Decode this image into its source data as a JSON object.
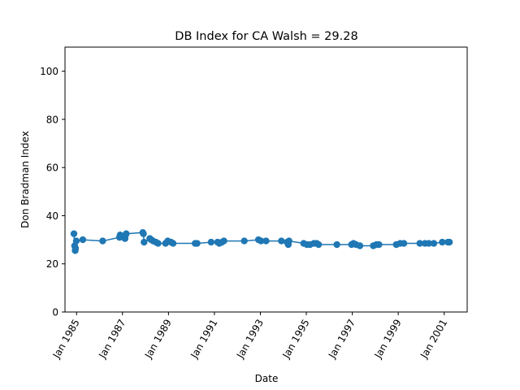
{
  "chart_data": {
    "type": "line",
    "title": "DB Index for CA Walsh = 29.28",
    "xlabel": "Date",
    "ylabel": "Don Bradman Index",
    "ylim": [
      0,
      110
    ],
    "xlim": [
      "1984-07-01",
      "2002-01-01"
    ],
    "yticks": [
      0,
      20,
      40,
      60,
      80,
      100
    ],
    "xticks": [
      {
        "date": "1985-01-01",
        "label": "Jan 1985"
      },
      {
        "date": "1987-01-01",
        "label": "Jan 1987"
      },
      {
        "date": "1989-01-01",
        "label": "Jan 1989"
      },
      {
        "date": "1991-01-01",
        "label": "Jan 1991"
      },
      {
        "date": "1993-01-01",
        "label": "Jan 1993"
      },
      {
        "date": "1995-01-01",
        "label": "Jan 1995"
      },
      {
        "date": "1997-01-01",
        "label": "Jan 1997"
      },
      {
        "date": "1999-01-01",
        "label": "Jan 1999"
      },
      {
        "date": "2001-01-01",
        "label": "Jan 2001"
      }
    ],
    "grid": false,
    "color": "#1f77b4",
    "series": [
      {
        "points": [
          [
            "1984-11-20",
            32.5
          ],
          [
            "1984-12-01",
            27.5
          ],
          [
            "1984-12-10",
            25.5
          ],
          [
            "1984-12-15",
            26.5
          ],
          [
            "1984-12-28",
            29.5
          ],
          [
            "1985-04-10",
            30.0
          ],
          [
            "1986-02-20",
            29.5
          ],
          [
            "1986-11-15",
            31.0
          ],
          [
            "1986-11-25",
            32.0
          ],
          [
            "1987-02-10",
            30.5
          ],
          [
            "1987-02-20",
            32.0
          ],
          [
            "1987-03-01",
            32.5
          ],
          [
            "1987-11-20",
            33.0
          ],
          [
            "1987-11-30",
            32.5
          ],
          [
            "1987-12-10",
            29.0
          ],
          [
            "1988-03-10",
            30.5
          ],
          [
            "1988-04-01",
            30.0
          ],
          [
            "1988-05-01",
            29.5
          ],
          [
            "1988-06-15",
            29.0
          ],
          [
            "1988-07-20",
            28.5
          ],
          [
            "1988-11-15",
            28.5
          ],
          [
            "1988-12-20",
            29.5
          ],
          [
            "1989-02-10",
            29.0
          ],
          [
            "1989-03-15",
            28.5
          ],
          [
            "1990-03-01",
            28.5
          ],
          [
            "1990-04-01",
            28.5
          ],
          [
            "1990-11-10",
            29.0
          ],
          [
            "1991-02-20",
            29.0
          ],
          [
            "1991-03-20",
            28.5
          ],
          [
            "1991-05-01",
            29.0
          ],
          [
            "1991-06-01",
            29.5
          ],
          [
            "1992-04-20",
            29.5
          ],
          [
            "1992-12-01",
            30.0
          ],
          [
            "1993-01-10",
            29.5
          ],
          [
            "1993-04-01",
            29.5
          ],
          [
            "1993-12-01",
            29.5
          ],
          [
            "1994-03-01",
            29.0
          ],
          [
            "1994-03-20",
            28.0
          ],
          [
            "1994-04-01",
            29.5
          ],
          [
            "1994-11-20",
            28.5
          ],
          [
            "1995-01-10",
            28.0
          ],
          [
            "1995-03-01",
            28.0
          ],
          [
            "1995-05-01",
            28.5
          ],
          [
            "1995-06-15",
            28.5
          ],
          [
            "1995-07-15",
            28.0
          ],
          [
            "1996-05-01",
            28.0
          ],
          [
            "1996-12-20",
            28.0
          ],
          [
            "1997-01-20",
            28.5
          ],
          [
            "1997-03-01",
            28.0
          ],
          [
            "1997-05-01",
            27.5
          ],
          [
            "1997-12-01",
            27.5
          ],
          [
            "1998-01-20",
            28.0
          ],
          [
            "1998-03-01",
            28.0
          ],
          [
            "1998-12-01",
            28.0
          ],
          [
            "1999-02-01",
            28.5
          ],
          [
            "1999-04-01",
            28.5
          ],
          [
            "1999-12-10",
            28.5
          ],
          [
            "2000-03-01",
            28.5
          ],
          [
            "2000-05-01",
            28.5
          ],
          [
            "2000-07-20",
            28.5
          ],
          [
            "2000-12-01",
            29.0
          ],
          [
            "2001-03-01",
            29.0
          ],
          [
            "2001-03-25",
            29.0
          ]
        ]
      }
    ]
  }
}
